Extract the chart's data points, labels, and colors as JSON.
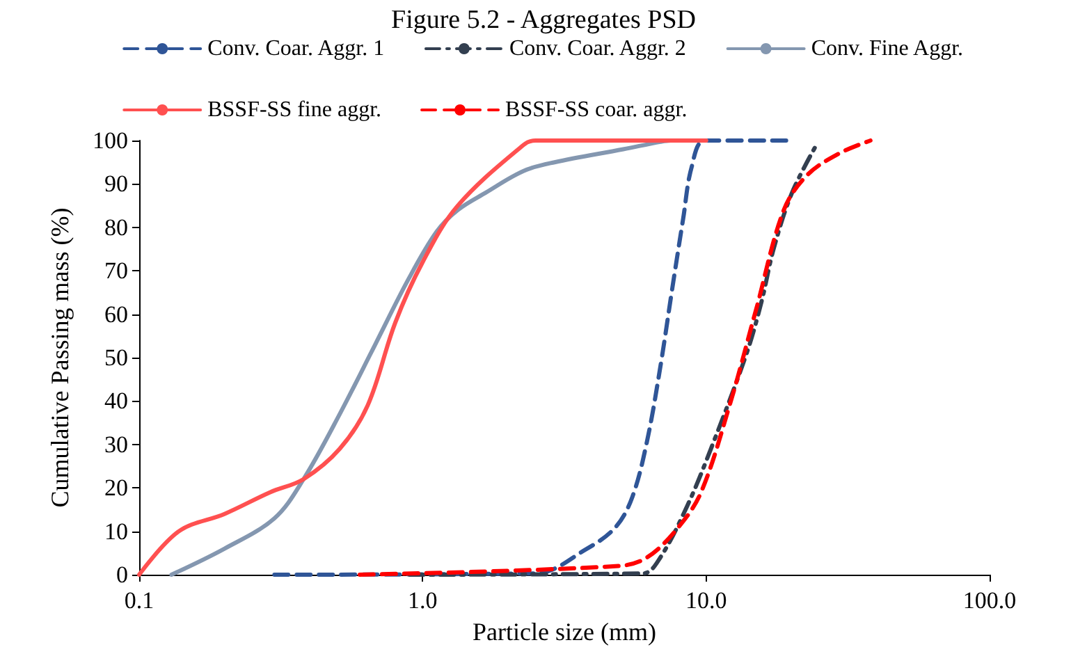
{
  "chart_data": {
    "type": "line",
    "title": "Figure 5.2 - Aggregates PSD",
    "xlabel": "Particle size (mm)",
    "ylabel": "Cumulative Passing mass (%)",
    "log": "x",
    "xlim": [
      0.1,
      100
    ],
    "xticks": [
      {
        "value": 0.1,
        "label": "0.1"
      },
      {
        "value": 1,
        "label": "1.0"
      },
      {
        "value": 10,
        "label": "10.0"
      },
      {
        "value": 100,
        "label": "100.0"
      }
    ],
    "ylim": [
      0,
      100
    ],
    "yticks": [
      0,
      10,
      20,
      30,
      40,
      50,
      60,
      70,
      80,
      90,
      100
    ],
    "grid": false,
    "legend": "top",
    "marker": "none",
    "series": [
      {
        "name": "Conv. Coar. Aggr. 1",
        "color": "#2f5597",
        "line_style": "dashed",
        "x": [
          0.3,
          2.5,
          3.8,
          4.8,
          5.5,
          6.2,
          6.9,
          7.6,
          8.3,
          8.9,
          9.9,
          20
        ],
        "values": [
          0,
          0.3,
          6,
          11,
          18,
          31,
          48,
          66,
          82,
          94,
          100,
          100
        ]
      },
      {
        "name": "Conv. Coar. Aggr. 2",
        "color": "#333f50",
        "line_style": "dashdot",
        "x": [
          0.9,
          6.0,
          6.9,
          8.6,
          10.4,
          13.9,
          15.7,
          17.3,
          20.1,
          24.5
        ],
        "values": [
          0,
          0.3,
          4,
          16,
          29,
          51,
          63,
          75,
          88,
          99
        ]
      },
      {
        "name": "Conv. Fine Aggr.",
        "color": "#8497b0",
        "line_style": "solid",
        "x": [
          0.13,
          0.2,
          0.3,
          0.38,
          0.51,
          0.68,
          0.89,
          1.12,
          1.33,
          1.67,
          2.27,
          2.92,
          5.1,
          6.9,
          7.5,
          10
        ],
        "values": [
          0,
          6,
          13,
          22,
          37,
          53,
          68,
          79,
          84,
          88,
          93,
          95,
          98,
          99.7,
          100,
          100
        ]
      },
      {
        "name": "BSSF-SS fine aggr.",
        "color": "#ff5050",
        "line_style": "solid",
        "x": [
          0.1,
          0.138,
          0.2,
          0.29,
          0.38,
          0.51,
          0.64,
          0.8,
          1.0,
          1.33,
          2.27,
          2.5,
          10
        ],
        "values": [
          0,
          10,
          14,
          19,
          22,
          29,
          39,
          58,
          72,
          85,
          99,
          100,
          100
        ]
      },
      {
        "name": "BSSF-SS coar. aggr.",
        "color": "#ff0000",
        "line_style": "dashed",
        "x": [
          0.6,
          4.9,
          6.2,
          8.0,
          9.6,
          12.1,
          15.0,
          18.8,
          22.7,
          29.4,
          38
        ],
        "values": [
          0,
          2,
          4,
          11,
          19,
          39,
          61,
          84,
          92,
          97,
          100
        ]
      }
    ]
  }
}
